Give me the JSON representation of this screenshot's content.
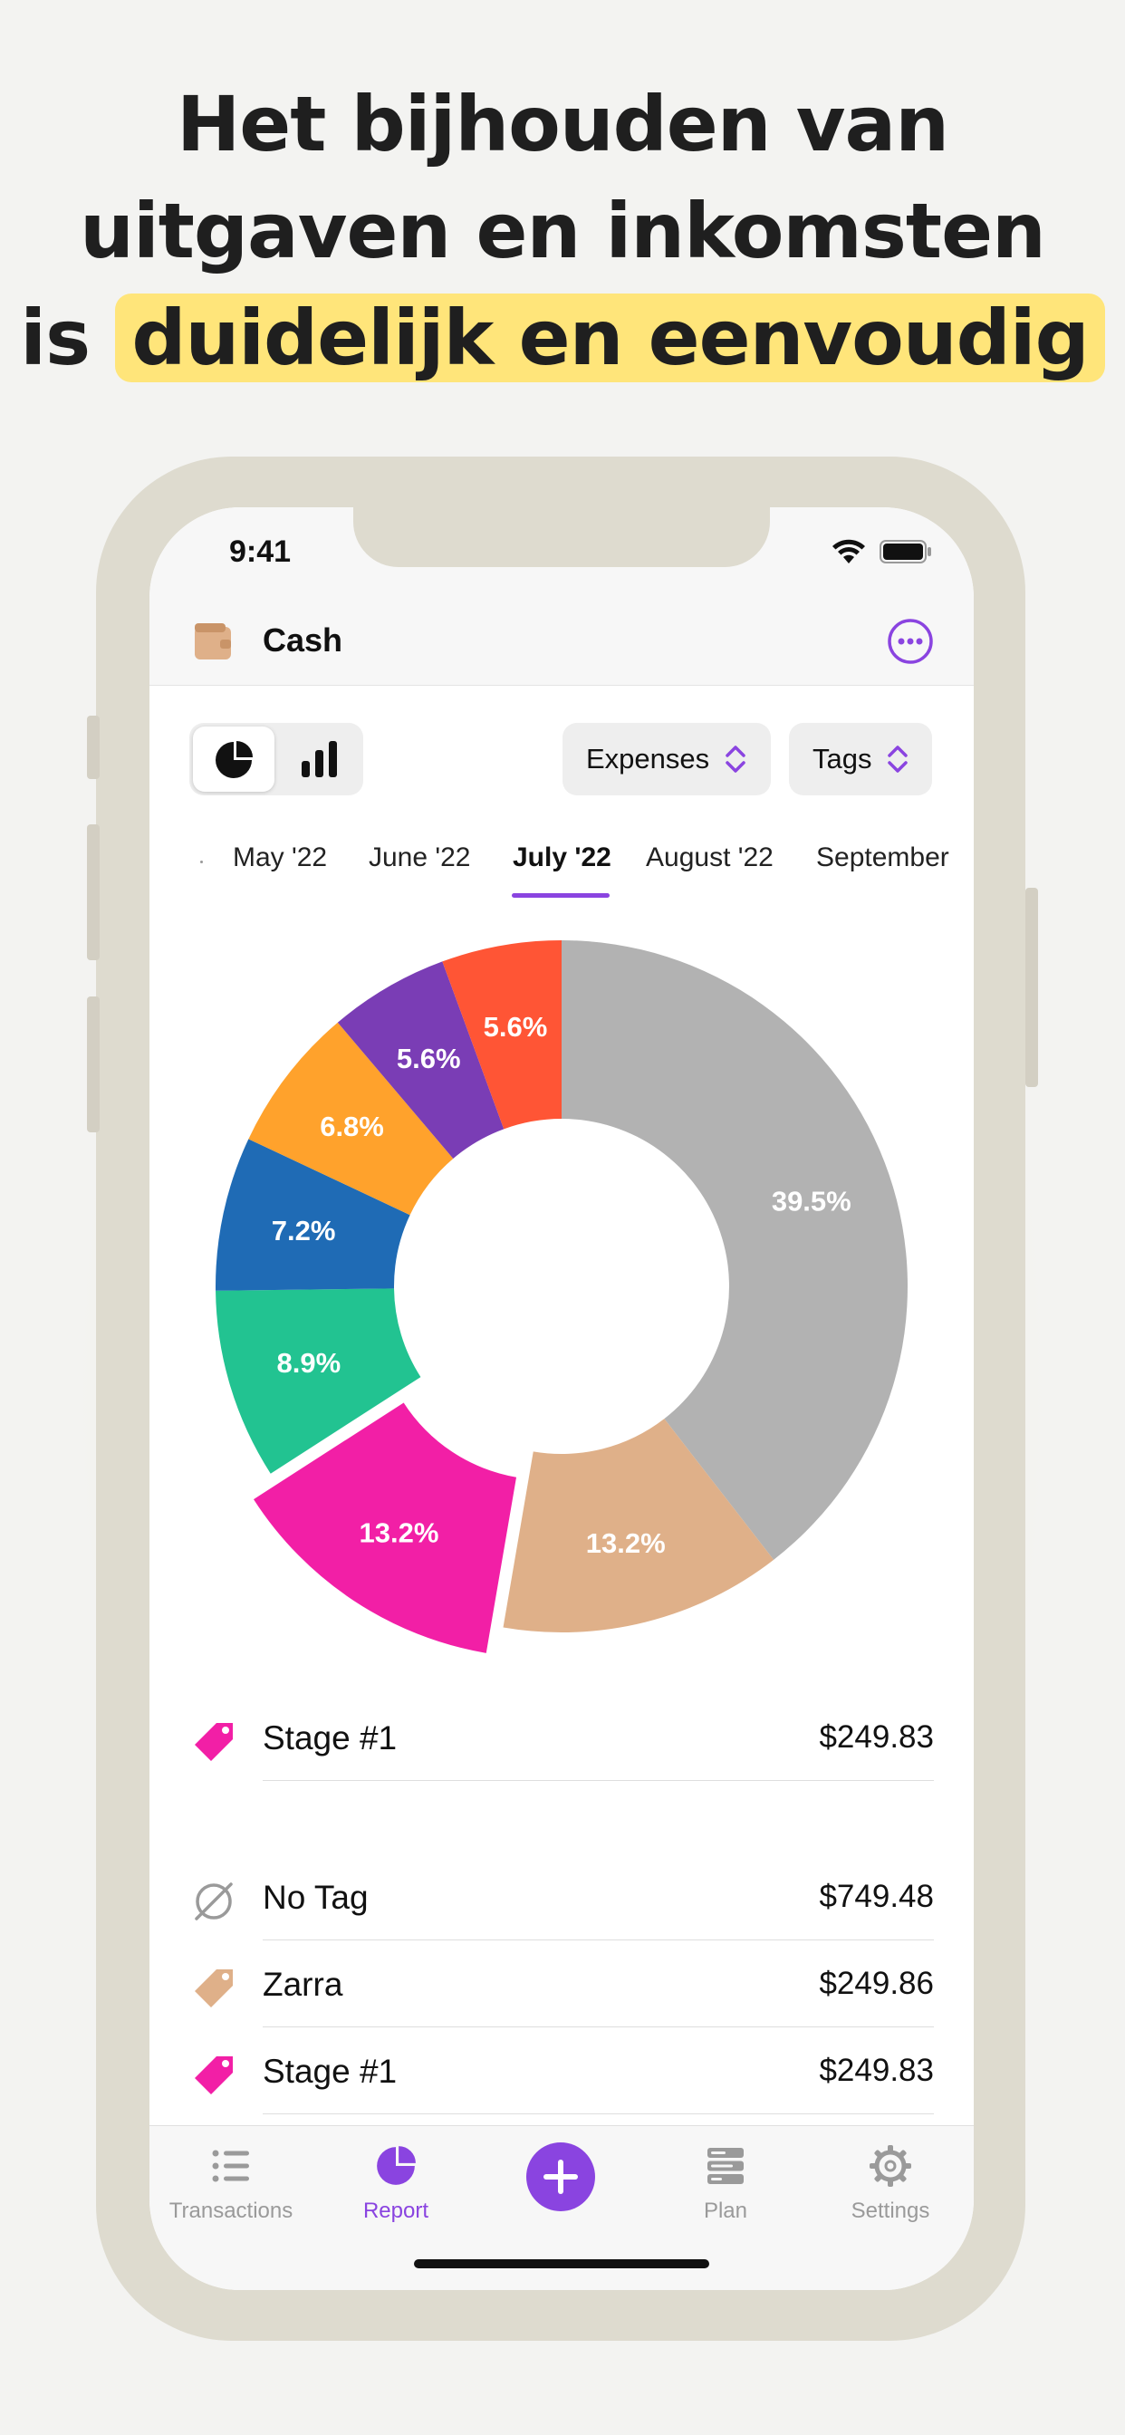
{
  "headline": {
    "line1": "Het bijhouden van",
    "line2": "uitgaven en inkomsten",
    "line3_prefix": "is ",
    "line3_highlight": "duidelijk en eenvoudig"
  },
  "status": {
    "time": "9:41"
  },
  "nav": {
    "title": "Cash"
  },
  "filters": {
    "type_label": "Expenses",
    "group_label": "Tags"
  },
  "months": [
    "May '22",
    "June '22",
    "July '22",
    "August '22",
    "September"
  ],
  "selected_month": "July '22",
  "chart_data": {
    "type": "pie",
    "style": "donut",
    "slices": [
      {
        "label": "39.5%",
        "value": 39.5,
        "color": "#b2b2b2"
      },
      {
        "label": "13.2%",
        "value": 13.2,
        "color": "#dfb089"
      },
      {
        "label": "13.2%",
        "value": 13.2,
        "color": "#f21fa6",
        "exploded": true
      },
      {
        "label": "8.9%",
        "value": 8.9,
        "color": "#22c391"
      },
      {
        "label": "7.2%",
        "value": 7.2,
        "color": "#1f6bb5"
      },
      {
        "label": "6.8%",
        "value": 6.8,
        "color": "#ffa22c"
      },
      {
        "label": "5.6%",
        "value": 5.6,
        "color": "#7a3db5"
      },
      {
        "label": "5.6%",
        "value": 5.6,
        "color": "#ff5535"
      }
    ]
  },
  "selected_item": {
    "name": "Stage #1",
    "amount": "$249.83",
    "color": "#f21fa6"
  },
  "items": [
    {
      "name": "No Tag",
      "amount": "$749.48",
      "icon": "no-tag-icon"
    },
    {
      "name": "Zarra",
      "amount": "$249.86",
      "icon": "tag-icon",
      "color": "#dfb089"
    },
    {
      "name": "Stage #1",
      "amount": "$249.83",
      "icon": "tag-icon",
      "color": "#f21fa6"
    }
  ],
  "tabs": [
    {
      "label": "Transactions"
    },
    {
      "label": "Report"
    },
    {
      "label": "Plan"
    },
    {
      "label": "Settings"
    }
  ],
  "colors": {
    "accent": "#8a44e0",
    "highlight": "#ffe57a"
  }
}
